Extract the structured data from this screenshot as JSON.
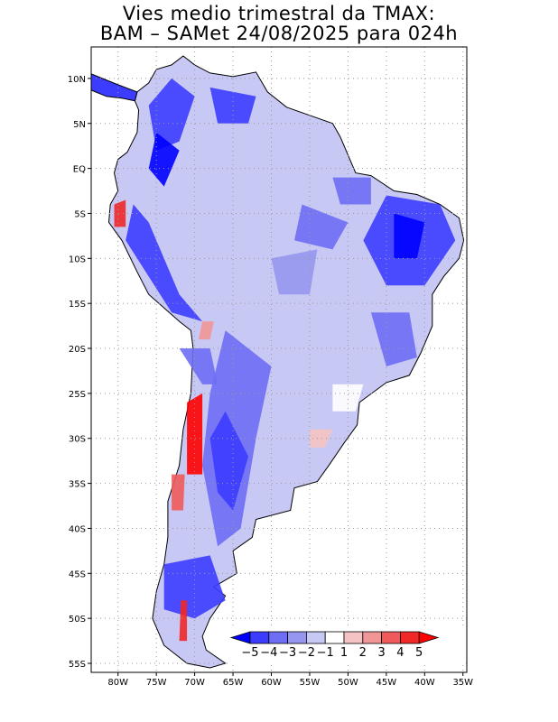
{
  "title": {
    "line1": "Vies medio trimestral da TMAX:",
    "line2": "BAM – SAMet 24/08/2025  para 024h"
  },
  "map": {
    "region": "South America",
    "lon_range": [
      -83.5,
      -34.5
    ],
    "lat_range": [
      13.5,
      -56
    ],
    "lon_ticks": [
      {
        "lon": -80,
        "label": "80W"
      },
      {
        "lon": -75,
        "label": "75W"
      },
      {
        "lon": -70,
        "label": "70W"
      },
      {
        "lon": -65,
        "label": "65W"
      },
      {
        "lon": -60,
        "label": "60W"
      },
      {
        "lon": -55,
        "label": "55W"
      },
      {
        "lon": -50,
        "label": "50W"
      },
      {
        "lon": -45,
        "label": "45W"
      },
      {
        "lon": -40,
        "label": "40W"
      },
      {
        "lon": -35,
        "label": "35W"
      }
    ],
    "lat_ticks": [
      {
        "lat": 10,
        "label": "10N"
      },
      {
        "lat": 5,
        "label": "5N"
      },
      {
        "lat": 0,
        "label": "EQ"
      },
      {
        "lat": -5,
        "label": "5S"
      },
      {
        "lat": -10,
        "label": "10S"
      },
      {
        "lat": -15,
        "label": "15S"
      },
      {
        "lat": -20,
        "label": "20S"
      },
      {
        "lat": -25,
        "label": "25S"
      },
      {
        "lat": -30,
        "label": "30S"
      },
      {
        "lat": -35,
        "label": "35S"
      },
      {
        "lat": -40,
        "label": "40S"
      },
      {
        "lat": -45,
        "label": "45S"
      },
      {
        "lat": -50,
        "label": "50S"
      },
      {
        "lat": -55,
        "label": "55S"
      }
    ],
    "grid": "dotted"
  },
  "colorbar": {
    "labels": [
      "−5",
      "−4",
      "−3",
      "−2",
      "−1",
      "1",
      "2",
      "3",
      "4",
      "5"
    ],
    "colors": [
      "#0000ff",
      "#3c3cff",
      "#6e6ef5",
      "#9696f0",
      "#c8c8f5",
      "#ffffff",
      "#f5c3c3",
      "#f09696",
      "#f05a5a",
      "#f02828",
      "#ff0000"
    ]
  }
}
